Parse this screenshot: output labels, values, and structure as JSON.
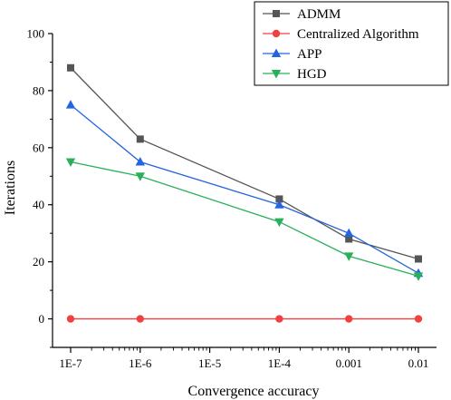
{
  "chart_data": {
    "type": "line",
    "title": "",
    "xlabel": "Convergence accuracy",
    "ylabel": "Iterations",
    "x_ticks": [
      "1E-7",
      "1E-6",
      "1E-5",
      "1E-4",
      "0.001",
      "0.01"
    ],
    "x_scale": "log",
    "xlim": [
      1e-07,
      0.01
    ],
    "y_ticks": [
      0,
      20,
      40,
      60,
      80,
      100
    ],
    "ylim": [
      -10,
      100
    ],
    "grid": false,
    "legend_position": "top-right",
    "series": [
      {
        "name": "ADMM",
        "color": "#555555",
        "marker": "square",
        "x": [
          1e-07,
          1e-06,
          0.0001,
          0.001,
          0.01
        ],
        "values": [
          88,
          63,
          42,
          28,
          21
        ]
      },
      {
        "name": "Centralized Algorithm",
        "color": "#f04040",
        "marker": "circle",
        "x": [
          1e-07,
          1e-06,
          0.0001,
          0.001,
          0.01
        ],
        "values": [
          0,
          0,
          0,
          0,
          0
        ]
      },
      {
        "name": "APP",
        "color": "#2464e0",
        "marker": "triangle-up",
        "x": [
          1e-07,
          1e-06,
          0.0001,
          0.001,
          0.01
        ],
        "values": [
          75,
          55,
          40,
          30,
          16
        ]
      },
      {
        "name": "HGD",
        "color": "#2ab05a",
        "marker": "triangle-down",
        "x": [
          1e-07,
          1e-06,
          0.0001,
          0.001,
          0.01
        ],
        "values": [
          55,
          50,
          34,
          22,
          15
        ]
      }
    ]
  }
}
